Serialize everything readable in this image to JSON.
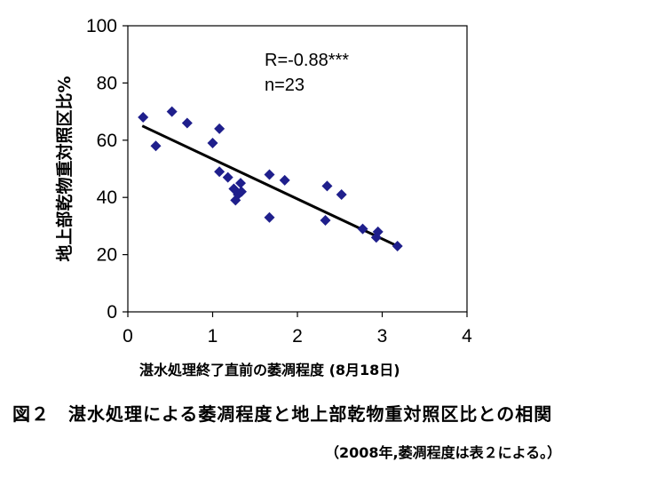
{
  "chart_data": {
    "type": "scatter",
    "ylabel": "地上部乾物重対照区比%",
    "xlabel": "湛水処理終了直前の萎凋程度 (8月18日)",
    "xlim": [
      0,
      4
    ],
    "ylim": [
      0,
      100
    ],
    "x_ticks": [
      "0",
      "1",
      "2",
      "3",
      "4"
    ],
    "y_ticks": [
      "0",
      "20",
      "40",
      "60",
      "80",
      "100"
    ],
    "grid": false,
    "marker_color": "#1f1f8c",
    "trendline": {
      "x": [
        0.17,
        3.18
      ],
      "y": [
        65,
        23
      ]
    },
    "annotations": [
      "R=-0.88***",
      "n=23"
    ],
    "points": [
      {
        "x": 0.18,
        "y": 68
      },
      {
        "x": 0.33,
        "y": 58
      },
      {
        "x": 0.52,
        "y": 70
      },
      {
        "x": 0.7,
        "y": 66
      },
      {
        "x": 1.0,
        "y": 59
      },
      {
        "x": 1.08,
        "y": 64
      },
      {
        "x": 1.08,
        "y": 49
      },
      {
        "x": 1.18,
        "y": 47
      },
      {
        "x": 1.25,
        "y": 43
      },
      {
        "x": 1.27,
        "y": 39
      },
      {
        "x": 1.3,
        "y": 41
      },
      {
        "x": 1.33,
        "y": 45
      },
      {
        "x": 1.34,
        "y": 42
      },
      {
        "x": 1.67,
        "y": 48
      },
      {
        "x": 1.67,
        "y": 33
      },
      {
        "x": 1.85,
        "y": 46
      },
      {
        "x": 2.33,
        "y": 32
      },
      {
        "x": 2.35,
        "y": 44
      },
      {
        "x": 2.52,
        "y": 41
      },
      {
        "x": 2.77,
        "y": 29
      },
      {
        "x": 2.93,
        "y": 26
      },
      {
        "x": 2.95,
        "y": 28
      },
      {
        "x": 3.18,
        "y": 23
      }
    ]
  },
  "caption": "図２　湛水処理による萎凋程度と地上部乾物重対照区比との相関",
  "note": "（2008年,萎凋程度は表２による。）"
}
